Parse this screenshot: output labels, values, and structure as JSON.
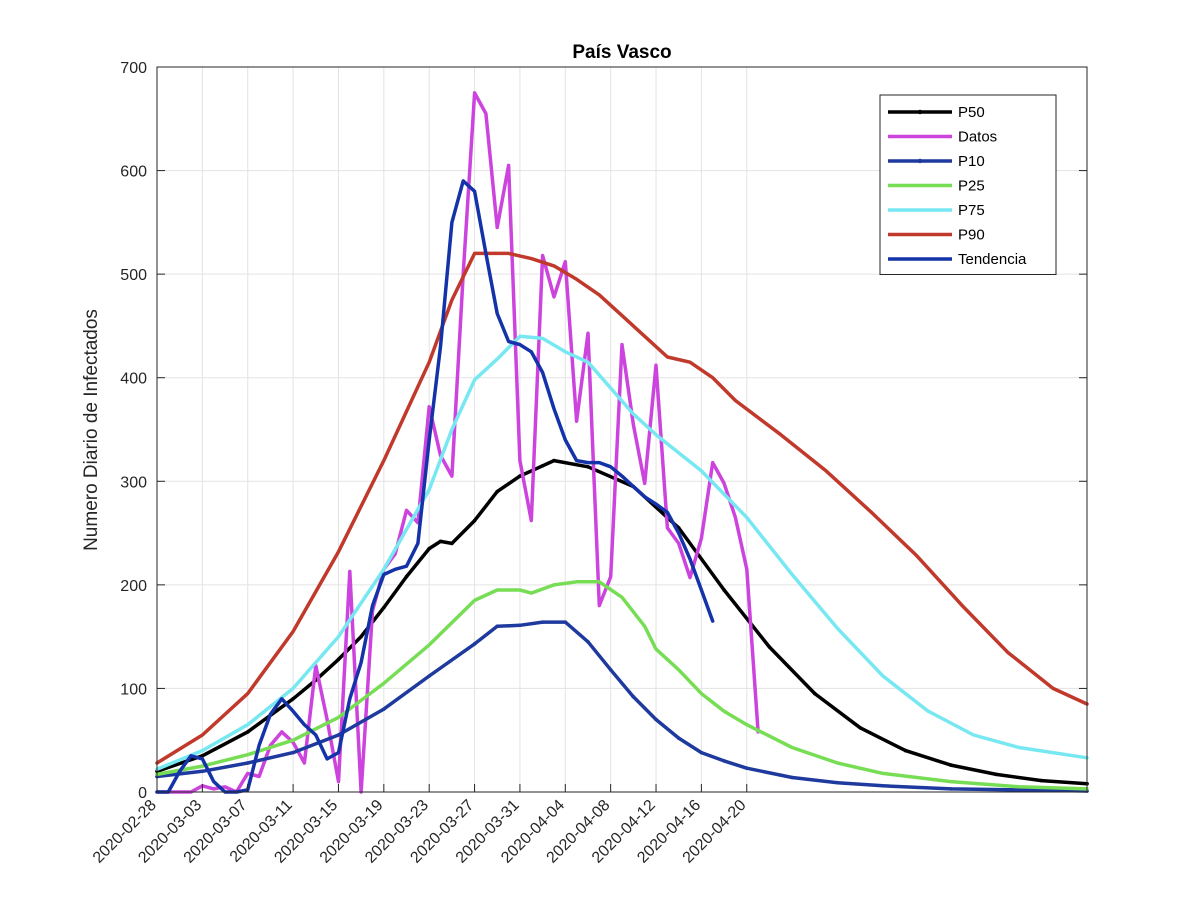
{
  "chart_data": {
    "type": "line",
    "title": "País Vasco",
    "xlabel": "",
    "ylabel": "Numero Diario de Infectados",
    "ylim": [
      0,
      700
    ],
    "xlim": [
      "2020-02-28",
      "2020-05-20"
    ],
    "yticks": [
      0,
      100,
      200,
      300,
      400,
      500,
      600,
      700
    ],
    "xticks": [
      "2020-02-28",
      "2020-03-03",
      "2020-03-07",
      "2020-03-11",
      "2020-03-15",
      "2020-03-19",
      "2020-03-23",
      "2020-03-27",
      "2020-03-31",
      "2020-04-04",
      "2020-04-08",
      "2020-04-12",
      "2020-04-16",
      "2020-04-20"
    ],
    "grid": true,
    "legend_position": "top-right",
    "series": [
      {
        "name": "P50",
        "color": "#000000",
        "marker": true,
        "points": [
          [
            "2020-02-28",
            20
          ],
          [
            "2020-03-03",
            35
          ],
          [
            "2020-03-07",
            58
          ],
          [
            "2020-03-11",
            90
          ],
          [
            "2020-03-13",
            108
          ],
          [
            "2020-03-15",
            128
          ],
          [
            "2020-03-17",
            150
          ],
          [
            "2020-03-19",
            178
          ],
          [
            "2020-03-21",
            208
          ],
          [
            "2020-03-23",
            235
          ],
          [
            "2020-03-24",
            242
          ],
          [
            "2020-03-25",
            240
          ],
          [
            "2020-03-27",
            262
          ],
          [
            "2020-03-29",
            290
          ],
          [
            "2020-03-31",
            305
          ],
          [
            "2020-04-02",
            315
          ],
          [
            "2020-04-03",
            320
          ],
          [
            "2020-04-06",
            314
          ],
          [
            "2020-04-10",
            295
          ],
          [
            "2020-04-14",
            255
          ],
          [
            "2020-04-18",
            195
          ],
          [
            "2020-04-22",
            140
          ],
          [
            "2020-04-26",
            95
          ],
          [
            "2020-04-30",
            62
          ],
          [
            "2020-05-04",
            40
          ],
          [
            "2020-05-08",
            26
          ],
          [
            "2020-05-12",
            17
          ],
          [
            "2020-05-16",
            11
          ],
          [
            "2020-05-20",
            8
          ]
        ]
      },
      {
        "name": "Datos",
        "color": "#CC44DD",
        "marker": false,
        "points": [
          [
            "2020-02-28",
            0
          ],
          [
            "2020-02-29",
            0
          ],
          [
            "2020-03-01",
            0
          ],
          [
            "2020-03-02",
            0
          ],
          [
            "2020-03-03",
            6
          ],
          [
            "2020-03-04",
            3
          ],
          [
            "2020-03-05",
            5
          ],
          [
            "2020-03-06",
            0
          ],
          [
            "2020-03-07",
            18
          ],
          [
            "2020-03-08",
            15
          ],
          [
            "2020-03-09",
            45
          ],
          [
            "2020-03-10",
            58
          ],
          [
            "2020-03-11",
            48
          ],
          [
            "2020-03-12",
            28
          ],
          [
            "2020-03-13",
            122
          ],
          [
            "2020-03-14",
            70
          ],
          [
            "2020-03-15",
            10
          ],
          [
            "2020-03-16",
            213
          ],
          [
            "2020-03-17",
            0
          ],
          [
            "2020-03-18",
            175
          ],
          [
            "2020-03-19",
            215
          ],
          [
            "2020-03-20",
            230
          ],
          [
            "2020-03-21",
            272
          ],
          [
            "2020-03-22",
            260
          ],
          [
            "2020-03-23",
            372
          ],
          [
            "2020-03-24",
            325
          ],
          [
            "2020-03-25",
            305
          ],
          [
            "2020-03-26",
            500
          ],
          [
            "2020-03-27",
            675
          ],
          [
            "2020-03-28",
            655
          ],
          [
            "2020-03-29",
            545
          ],
          [
            "2020-03-30",
            605
          ],
          [
            "2020-03-31",
            320
          ],
          [
            "2020-04-01",
            262
          ],
          [
            "2020-04-02",
            518
          ],
          [
            "2020-04-03",
            478
          ],
          [
            "2020-04-04",
            512
          ],
          [
            "2020-04-05",
            358
          ],
          [
            "2020-04-06",
            443
          ],
          [
            "2020-04-07",
            180
          ],
          [
            "2020-04-08",
            208
          ],
          [
            "2020-04-09",
            432
          ],
          [
            "2020-04-10",
            355
          ],
          [
            "2020-04-11",
            298
          ],
          [
            "2020-04-12",
            412
          ],
          [
            "2020-04-13",
            255
          ],
          [
            "2020-04-14",
            240
          ],
          [
            "2020-04-15",
            207
          ],
          [
            "2020-04-16",
            245
          ],
          [
            "2020-04-17",
            318
          ],
          [
            "2020-04-18",
            298
          ],
          [
            "2020-04-19",
            265
          ],
          [
            "2020-04-20",
            215
          ],
          [
            "2020-04-21",
            58
          ]
        ]
      },
      {
        "name": "P10",
        "color": "#1F3A9E",
        "marker": true,
        "points": [
          [
            "2020-02-28",
            15
          ],
          [
            "2020-03-03",
            20
          ],
          [
            "2020-03-07",
            28
          ],
          [
            "2020-03-11",
            38
          ],
          [
            "2020-03-15",
            55
          ],
          [
            "2020-03-19",
            80
          ],
          [
            "2020-03-23",
            112
          ],
          [
            "2020-03-27",
            143
          ],
          [
            "2020-03-29",
            160
          ],
          [
            "2020-03-31",
            161
          ],
          [
            "2020-04-02",
            164
          ],
          [
            "2020-04-04",
            164
          ],
          [
            "2020-04-06",
            145
          ],
          [
            "2020-04-08",
            118
          ],
          [
            "2020-04-10",
            92
          ],
          [
            "2020-04-12",
            70
          ],
          [
            "2020-04-14",
            52
          ],
          [
            "2020-04-16",
            38
          ],
          [
            "2020-04-18",
            30
          ],
          [
            "2020-04-20",
            23
          ],
          [
            "2020-04-24",
            14
          ],
          [
            "2020-04-28",
            9
          ],
          [
            "2020-05-02",
            6
          ],
          [
            "2020-05-08",
            3
          ],
          [
            "2020-05-14",
            2
          ],
          [
            "2020-05-20",
            1
          ]
        ]
      },
      {
        "name": "P25",
        "color": "#77DD55",
        "marker": false,
        "points": [
          [
            "2020-02-28",
            17
          ],
          [
            "2020-03-03",
            25
          ],
          [
            "2020-03-07",
            36
          ],
          [
            "2020-03-11",
            50
          ],
          [
            "2020-03-15",
            72
          ],
          [
            "2020-03-19",
            105
          ],
          [
            "2020-03-23",
            142
          ],
          [
            "2020-03-27",
            185
          ],
          [
            "2020-03-29",
            195
          ],
          [
            "2020-03-31",
            195
          ],
          [
            "2020-04-01",
            192
          ],
          [
            "2020-04-03",
            200
          ],
          [
            "2020-04-05",
            203
          ],
          [
            "2020-04-07",
            203
          ],
          [
            "2020-04-09",
            188
          ],
          [
            "2020-04-11",
            160
          ],
          [
            "2020-04-12",
            138
          ],
          [
            "2020-04-14",
            118
          ],
          [
            "2020-04-16",
            95
          ],
          [
            "2020-04-18",
            78
          ],
          [
            "2020-04-20",
            65
          ],
          [
            "2020-04-24",
            43
          ],
          [
            "2020-04-28",
            28
          ],
          [
            "2020-05-02",
            18
          ],
          [
            "2020-05-08",
            10
          ],
          [
            "2020-05-14",
            5
          ],
          [
            "2020-05-20",
            3
          ]
        ]
      },
      {
        "name": "P75",
        "color": "#77E8F2",
        "marker": false,
        "points": [
          [
            "2020-02-28",
            22
          ],
          [
            "2020-03-03",
            40
          ],
          [
            "2020-03-07",
            65
          ],
          [
            "2020-03-11",
            100
          ],
          [
            "2020-03-15",
            150
          ],
          [
            "2020-03-19",
            215
          ],
          [
            "2020-03-23",
            292
          ],
          [
            "2020-03-25",
            350
          ],
          [
            "2020-03-27",
            398
          ],
          [
            "2020-03-29",
            418
          ],
          [
            "2020-03-31",
            440
          ],
          [
            "2020-04-02",
            438
          ],
          [
            "2020-04-04",
            425
          ],
          [
            "2020-04-06",
            415
          ],
          [
            "2020-04-08",
            390
          ],
          [
            "2020-04-10",
            365
          ],
          [
            "2020-04-12",
            345
          ],
          [
            "2020-04-16",
            310
          ],
          [
            "2020-04-20",
            265
          ],
          [
            "2020-04-24",
            210
          ],
          [
            "2020-04-28",
            158
          ],
          [
            "2020-05-02",
            112
          ],
          [
            "2020-05-06",
            78
          ],
          [
            "2020-05-10",
            55
          ],
          [
            "2020-05-14",
            43
          ],
          [
            "2020-05-20",
            33
          ]
        ]
      },
      {
        "name": "P90",
        "color": "#C0392B",
        "marker": false,
        "points": [
          [
            "2020-02-28",
            28
          ],
          [
            "2020-03-03",
            55
          ],
          [
            "2020-03-07",
            95
          ],
          [
            "2020-03-11",
            155
          ],
          [
            "2020-03-15",
            232
          ],
          [
            "2020-03-19",
            320
          ],
          [
            "2020-03-23",
            415
          ],
          [
            "2020-03-25",
            475
          ],
          [
            "2020-03-27",
            520
          ],
          [
            "2020-03-30",
            520
          ],
          [
            "2020-04-01",
            515
          ],
          [
            "2020-04-03",
            508
          ],
          [
            "2020-04-05",
            495
          ],
          [
            "2020-04-07",
            480
          ],
          [
            "2020-04-09",
            460
          ],
          [
            "2020-04-11",
            440
          ],
          [
            "2020-04-13",
            420
          ],
          [
            "2020-04-15",
            415
          ],
          [
            "2020-04-17",
            400
          ],
          [
            "2020-04-19",
            378
          ],
          [
            "2020-04-23",
            345
          ],
          [
            "2020-04-27",
            310
          ],
          [
            "2020-05-01",
            270
          ],
          [
            "2020-05-05",
            228
          ],
          [
            "2020-05-09",
            180
          ],
          [
            "2020-05-13",
            135
          ],
          [
            "2020-05-17",
            100
          ],
          [
            "2020-05-20",
            85
          ]
        ]
      },
      {
        "name": "Tendencia",
        "color": "#1533A8",
        "marker": false,
        "points": [
          [
            "2020-02-28",
            0
          ],
          [
            "2020-02-29",
            0
          ],
          [
            "2020-03-01",
            20
          ],
          [
            "2020-03-02",
            35
          ],
          [
            "2020-03-03",
            32
          ],
          [
            "2020-03-04",
            10
          ],
          [
            "2020-03-05",
            0
          ],
          [
            "2020-03-06",
            0
          ],
          [
            "2020-03-07",
            2
          ],
          [
            "2020-03-08",
            45
          ],
          [
            "2020-03-09",
            75
          ],
          [
            "2020-03-10",
            90
          ],
          [
            "2020-03-11",
            78
          ],
          [
            "2020-03-12",
            65
          ],
          [
            "2020-03-13",
            55
          ],
          [
            "2020-03-14",
            32
          ],
          [
            "2020-03-15",
            38
          ],
          [
            "2020-03-16",
            90
          ],
          [
            "2020-03-17",
            125
          ],
          [
            "2020-03-18",
            180
          ],
          [
            "2020-03-19",
            210
          ],
          [
            "2020-03-20",
            215
          ],
          [
            "2020-03-21",
            218
          ],
          [
            "2020-03-22",
            240
          ],
          [
            "2020-03-23",
            340
          ],
          [
            "2020-03-24",
            430
          ],
          [
            "2020-03-25",
            550
          ],
          [
            "2020-03-26",
            590
          ],
          [
            "2020-03-27",
            580
          ],
          [
            "2020-03-28",
            520
          ],
          [
            "2020-03-29",
            462
          ],
          [
            "2020-03-30",
            435
          ],
          [
            "2020-03-31",
            432
          ],
          [
            "2020-04-01",
            425
          ],
          [
            "2020-04-02",
            405
          ],
          [
            "2020-04-03",
            370
          ],
          [
            "2020-04-04",
            340
          ],
          [
            "2020-04-05",
            320
          ],
          [
            "2020-04-06",
            318
          ],
          [
            "2020-04-07",
            318
          ],
          [
            "2020-04-08",
            314
          ],
          [
            "2020-04-09",
            305
          ],
          [
            "2020-04-10",
            295
          ],
          [
            "2020-04-11",
            285
          ],
          [
            "2020-04-12",
            278
          ],
          [
            "2020-04-13",
            270
          ],
          [
            "2020-04-14",
            250
          ],
          [
            "2020-04-15",
            225
          ],
          [
            "2020-04-16",
            195
          ],
          [
            "2020-04-17",
            165
          ]
        ]
      }
    ]
  }
}
